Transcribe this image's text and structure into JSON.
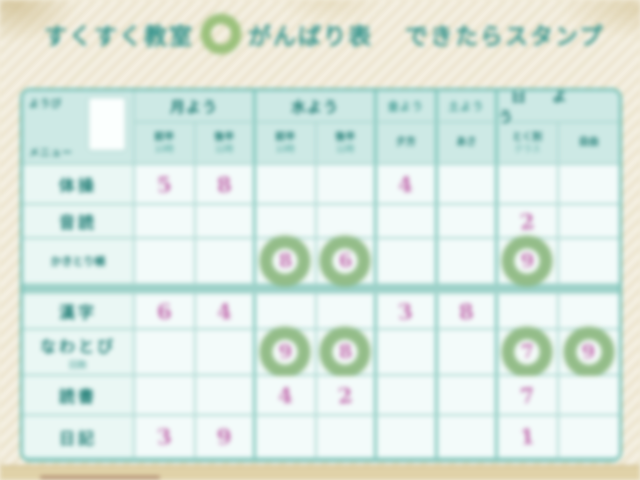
{
  "title": {
    "part1": "すくすく教室",
    "icon": "ring-stamp-icon",
    "part2": "がんばり表",
    "part3": "できたらスタンプ"
  },
  "colors": {
    "accent_teal": "#2a8f88",
    "grid_line": "#aed9d2",
    "header_bg": "#cde9e5",
    "stamp_green": "#83b175",
    "number_pink": "#c36fb0",
    "page_background": "#f2ecda"
  },
  "table": {
    "corner": {
      "line1": "ようび",
      "line2": "メニュー"
    },
    "groups": [
      {
        "label": "月よう",
        "span": 2,
        "small": false,
        "wide": false
      },
      {
        "label": "水よう",
        "span": 2,
        "small": false,
        "wide": false
      },
      {
        "label": "金よう",
        "span": 1,
        "small": true,
        "wide": false
      },
      {
        "label": "土よう",
        "span": 1,
        "small": true,
        "wide": false
      },
      {
        "label": "日よう",
        "span": 2,
        "small": false,
        "wide": true
      }
    ],
    "subheaders": [
      {
        "line1": "前半",
        "line2": "10時"
      },
      {
        "line1": "後半",
        "line2": "11時"
      },
      {
        "line1": "前半",
        "line2": "10時"
      },
      {
        "line1": "後半",
        "line2": "11時"
      },
      {
        "line1": "夕方",
        "line2": ""
      },
      {
        "line1": "あさ",
        "line2": ""
      },
      {
        "line1": "とく別",
        "line2": "クラス"
      },
      {
        "line1": "自由",
        "line2": ""
      }
    ],
    "rows": [
      {
        "label": "体操",
        "sublabel": "",
        "small": false,
        "cells": [
          {
            "v": "5"
          },
          {
            "v": "8"
          },
          {},
          {},
          {
            "v": "4"
          },
          {},
          {},
          {}
        ]
      },
      {
        "label": "音読",
        "sublabel": "",
        "small": false,
        "cells": [
          {},
          {},
          {},
          {},
          {},
          {},
          {
            "v": "2"
          },
          {}
        ]
      },
      {
        "label": "かきとり帳",
        "sublabel": "",
        "small": true,
        "cells": [
          {},
          {},
          {
            "v": "8",
            "stamp": true
          },
          {
            "v": "6",
            "stamp": true
          },
          {},
          {},
          {
            "v": "9",
            "stamp": true
          },
          {}
        ]
      },
      {
        "separator": true
      },
      {
        "label": "漢字",
        "sublabel": "",
        "small": false,
        "cells": [
          {
            "v": "6"
          },
          {
            "v": "4"
          },
          {},
          {},
          {
            "v": "3"
          },
          {
            "v": "8"
          },
          {},
          {}
        ]
      },
      {
        "label": "なわとび",
        "sublabel": "回数",
        "small": false,
        "cells": [
          {},
          {},
          {
            "v": "9",
            "stamp": true
          },
          {
            "v": "8",
            "stamp": true
          },
          {},
          {},
          {
            "v": "7",
            "stamp": true
          },
          {
            "v": "9",
            "stamp": true
          }
        ]
      },
      {
        "label": "読書",
        "sublabel": "",
        "small": false,
        "cells": [
          {},
          {},
          {
            "v": "4"
          },
          {
            "v": "2"
          },
          {},
          {},
          {
            "v": "7"
          },
          {}
        ]
      },
      {
        "label": "日記",
        "sublabel": "",
        "small": false,
        "cells": [
          {
            "v": "3"
          },
          {
            "v": "9"
          },
          {},
          {},
          {},
          {},
          {
            "v": "1"
          },
          {}
        ]
      }
    ]
  }
}
